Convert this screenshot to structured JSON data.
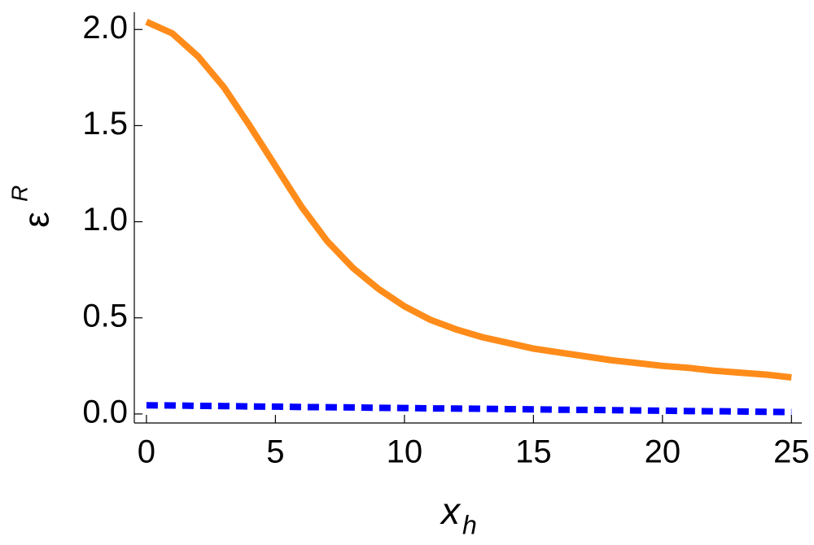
{
  "chart_data": {
    "type": "line",
    "x": [
      0,
      1,
      2,
      3,
      4,
      5,
      6,
      7,
      8,
      9,
      10,
      11,
      12,
      13,
      14,
      15,
      16,
      17,
      18,
      19,
      20,
      21,
      22,
      23,
      24,
      25
    ],
    "series": [
      {
        "color": "#ff8c1a",
        "style": "solid",
        "values": [
          2.04,
          1.98,
          1.86,
          1.7,
          1.5,
          1.29,
          1.08,
          0.9,
          0.76,
          0.65,
          0.56,
          0.49,
          0.44,
          0.4,
          0.37,
          0.34,
          0.32,
          0.3,
          0.28,
          0.265,
          0.25,
          0.24,
          0.225,
          0.215,
          0.205,
          0.19
        ]
      },
      {
        "color": "#0000ff",
        "style": "dashed",
        "values": [
          0.045,
          0.044,
          0.042,
          0.041,
          0.039,
          0.038,
          0.036,
          0.035,
          0.034,
          0.032,
          0.031,
          0.029,
          0.028,
          0.027,
          0.025,
          0.024,
          0.022,
          0.021,
          0.02,
          0.018,
          0.017,
          0.015,
          0.014,
          0.013,
          0.011,
          0.01
        ]
      }
    ],
    "xlabel": {
      "base": "x",
      "sub": "h"
    },
    "ylabel": {
      "base": "ε",
      "sup": "R"
    },
    "xlim": [
      -0.47,
      25.4
    ],
    "ylim": [
      -0.047,
      2.09
    ],
    "xticks": [
      0,
      5,
      10,
      15,
      20,
      25
    ],
    "yticks": [
      {
        "value": 0,
        "label": "0.0"
      },
      {
        "value": 0.5,
        "label": "0.5"
      },
      {
        "value": 1,
        "label": "1.0"
      },
      {
        "value": 1.5,
        "label": "1.5"
      },
      {
        "value": 2,
        "label": "2.0"
      }
    ]
  }
}
